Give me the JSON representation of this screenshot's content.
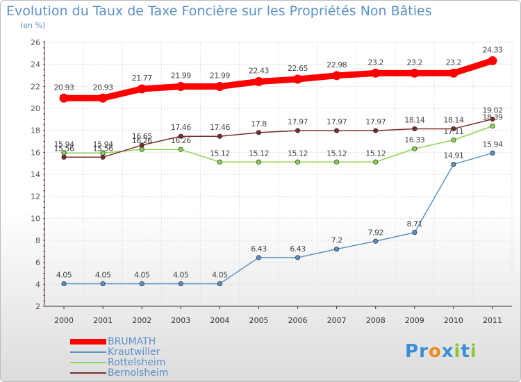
{
  "chart_data": {
    "type": "line",
    "title": "Evolution du Taux de Taxe Foncière sur les Propriétés Non Bâties",
    "ylabel": "(en %)",
    "xlabel": "",
    "categories": [
      "2000",
      "2001",
      "2002",
      "2003",
      "2004",
      "2005",
      "2006",
      "2007",
      "2008",
      "2009",
      "2010",
      "2011"
    ],
    "ylim": [
      2,
      26
    ],
    "yticks": [
      2,
      4,
      6,
      8,
      10,
      12,
      14,
      16,
      18,
      20,
      22,
      24,
      26
    ],
    "grid": true,
    "legend_position": "bottom-left",
    "series": [
      {
        "name": "BRUMATH",
        "color": "#ff0000",
        "values": [
          20.93,
          20.93,
          21.77,
          21.99,
          21.99,
          22.43,
          22.65,
          22.98,
          23.2,
          23.2,
          23.2,
          24.33
        ],
        "labels": [
          "20.93",
          "20.93",
          "21.77",
          "21.99",
          "21.99",
          "22.43",
          "22.65",
          "22.98",
          "23.2",
          "23.2",
          "23.2",
          "24.33"
        ]
      },
      {
        "name": "Krautwiller",
        "color": "#5b93c6",
        "values": [
          4.05,
          4.05,
          4.05,
          4.05,
          4.05,
          6.43,
          6.43,
          7.2,
          7.92,
          8.71,
          14.91,
          15.94
        ],
        "labels": [
          "4.05",
          "4.05",
          "4.05",
          "4.05",
          "4.05",
          "6.43",
          "6.43",
          "7.2",
          "7.92",
          "8.71",
          "14.91",
          "15.94"
        ]
      },
      {
        "name": "Rottelsheim",
        "color": "#8ed44f",
        "values": [
          15.94,
          15.94,
          16.26,
          16.26,
          15.12,
          15.12,
          15.12,
          15.12,
          15.12,
          16.33,
          17.11,
          18.39
        ],
        "labels": [
          "15.94",
          "15.94",
          "16.26",
          "16.26",
          "15.12",
          "15.12",
          "15.12",
          "15.12",
          "15.12",
          "16.33",
          "17.11",
          "18.39"
        ]
      },
      {
        "name": "Bernolsheim",
        "color": "#7b2b2b",
        "values": [
          15.56,
          15.56,
          16.65,
          17.46,
          17.46,
          17.8,
          17.97,
          17.97,
          17.97,
          18.14,
          18.14,
          19.02
        ],
        "labels": [
          "15.56",
          "15.56",
          "16.65",
          "17.46",
          "17.46",
          "17.8",
          "17.97",
          "17.97",
          "17.97",
          "18.14",
          "18.14",
          "19.02"
        ]
      }
    ]
  },
  "logo": {
    "text": "Proxiti",
    "letters": [
      "P",
      "r",
      "o",
      "x",
      "i",
      "t",
      "i"
    ],
    "colors": [
      "#3a8ed8",
      "#3a8ed8",
      "#f08a1c",
      "#3a8ed8",
      "#8cc63f",
      "#3a8ed8",
      "#8cc63f"
    ]
  }
}
